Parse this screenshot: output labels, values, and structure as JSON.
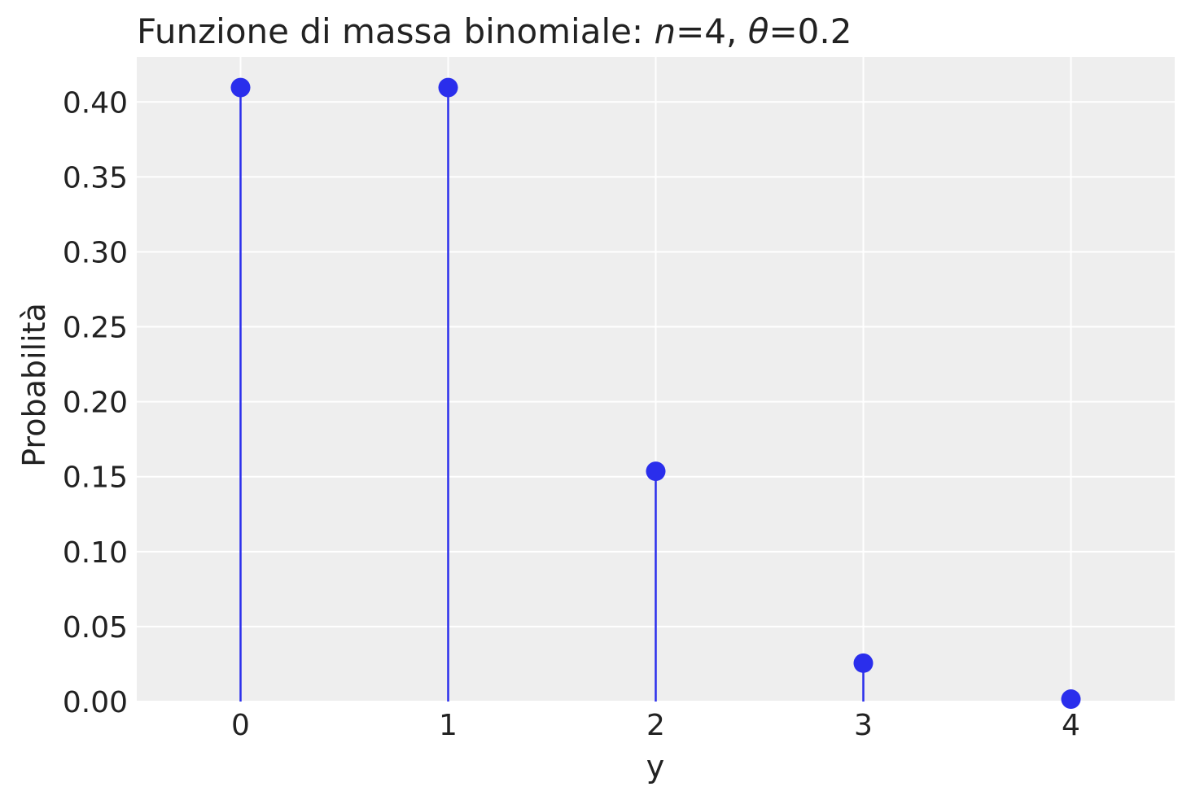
{
  "chart_data": {
    "type": "stem",
    "title": {
      "prefix": "Funzione di massa binomiale: ",
      "n_symbol": "n",
      "n_text": "=4, ",
      "theta_symbol": "θ",
      "theta_text": "=0.2"
    },
    "xlabel": "y",
    "ylabel": "Probabilità",
    "x": [
      0,
      1,
      2,
      3,
      4
    ],
    "values": [
      0.4096,
      0.4096,
      0.1536,
      0.0256,
      0.0016
    ],
    "x_ticks": [
      "0",
      "1",
      "2",
      "3",
      "4"
    ],
    "y_ticks": [
      "0.00",
      "0.05",
      "0.10",
      "0.15",
      "0.20",
      "0.25",
      "0.30",
      "0.35",
      "0.40"
    ],
    "xlim": [
      -0.5,
      4.5
    ],
    "ylim": [
      0,
      0.43
    ],
    "grid": true,
    "colors": {
      "marker": "#2a2eec",
      "background": "#eeeeee",
      "grid": "#ffffff"
    }
  }
}
